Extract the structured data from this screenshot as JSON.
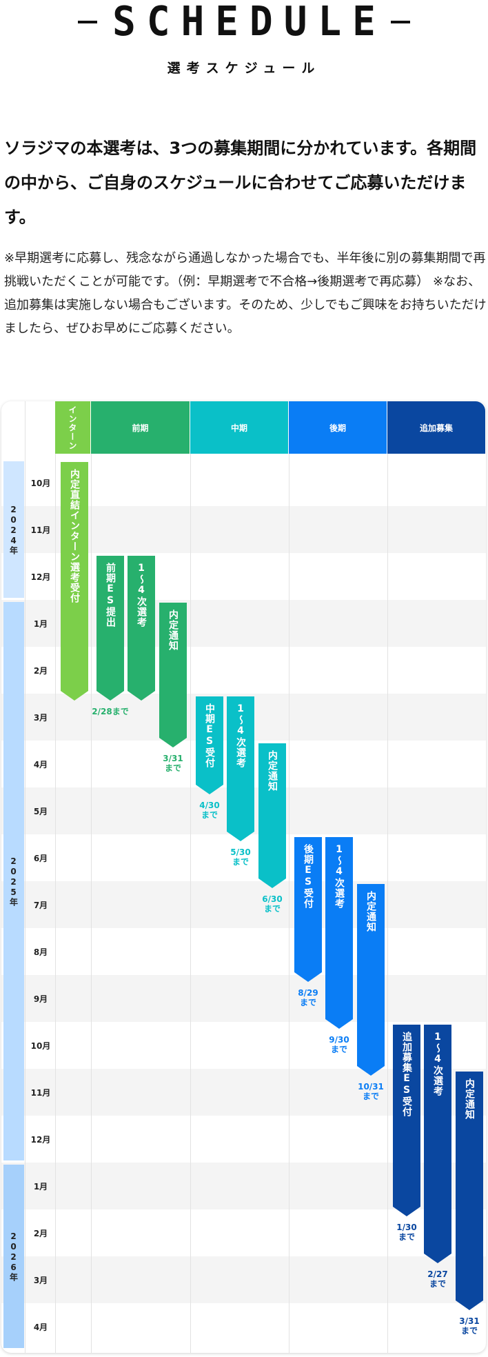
{
  "header": {
    "title": "SCHEDULE",
    "subtitle": "選考スケジュール"
  },
  "intro": {
    "lead": "ソラジマの本選考は、3つの募集期間に分かれています。各期間の中から、ご自身のスケジュールに合わせてご応募いただけます。",
    "note": "※早期選考に応募し、残念ながら通過しなかった場合でも、半年後に別の募集期間で再挑戦いただくことが可能です。（例：早期選考で不合格→後期選考で再応募） ※なお、追加募集は実施しない場合もございます。そのため、少しでもご興味をお持ちいただけましたら、ぜひお早めにご応募ください。"
  },
  "schedule": {
    "years": [
      "2024年",
      "2025年",
      "2026年"
    ],
    "months": [
      "10月",
      "11月",
      "12月",
      "1月",
      "2月",
      "3月",
      "4月",
      "5月",
      "6月",
      "7月",
      "8月",
      "9月",
      "10月",
      "11月",
      "12月",
      "1月",
      "2月",
      "3月",
      "4月"
    ],
    "columns": [
      {
        "label": "インターン",
        "color": "#7ccf4a"
      },
      {
        "label": "前期",
        "color": "#27b06d"
      },
      {
        "label": "中期",
        "color": "#0ac0c8"
      },
      {
        "label": "後期",
        "color": "#0a7df5"
      },
      {
        "label": "追加募集",
        "color": "#0a47a0"
      }
    ],
    "bars": [
      {
        "label": "内定直結インターン選考受付",
        "deadline": ""
      },
      {
        "label": "前期ES提出",
        "deadline": "2/28まで"
      },
      {
        "label": "1〜4次選考",
        "deadline": ""
      },
      {
        "label": "内定通知",
        "deadline": "3/31\nまで"
      },
      {
        "label": "中期ES受付",
        "deadline": "4/30\nまで"
      },
      {
        "label": "1〜4次選考",
        "deadline": "5/30\nまで"
      },
      {
        "label": "内定通知",
        "deadline": "6/30\nまで"
      },
      {
        "label": "後期ES受付",
        "deadline": "8/29\nまで"
      },
      {
        "label": "1〜4次選考",
        "deadline": "9/30\nまで"
      },
      {
        "label": "内定通知",
        "deadline": "10/31\nまで"
      },
      {
        "label": "追加募集ES受付",
        "deadline": "1/30\nまで"
      },
      {
        "label": "1〜4次選考",
        "deadline": "2/27\nまで"
      },
      {
        "label": "内定通知",
        "deadline": "3/31\nまで"
      }
    ]
  }
}
